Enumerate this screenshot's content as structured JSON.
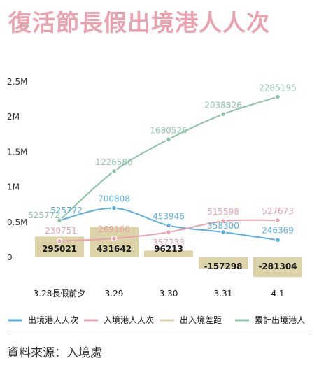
{
  "title": "復活節長假出境港人人次",
  "source": "資料來源：入境處",
  "chart_data": {
    "type": "bar",
    "categories": [
      "3.28長假前夕",
      "3.29",
      "3.30",
      "3.31",
      "4.1"
    ],
    "y_ticks": [
      {
        "value": 2500000,
        "label": "2.5M"
      },
      {
        "value": 2000000,
        "label": "2M"
      },
      {
        "value": 1500000,
        "label": "1.5M"
      },
      {
        "value": 1000000,
        "label": "1M"
      },
      {
        "value": 500000,
        "label": "0.5M"
      },
      {
        "value": 0,
        "label": "0"
      }
    ],
    "ylim": [
      -300000,
      2500000
    ],
    "grid": false,
    "legend_position": "bottom",
    "series": [
      {
        "name": "出境港人人次",
        "type": "line",
        "color": "#5aaee0",
        "values": [
          525772,
          700808,
          453946,
          358300,
          246369
        ],
        "labels": [
          "525772",
          "700808",
          "453946",
          "358300",
          "246369"
        ]
      },
      {
        "name": "入境港人人次",
        "type": "line",
        "color": "#e9a2ae",
        "values": [
          230751,
          269166,
          357733,
          515598,
          527673
        ],
        "labels": [
          "230751",
          "269166",
          "357733",
          "515598",
          "527673"
        ]
      },
      {
        "name": "出入境差距",
        "type": "bar",
        "color": "#dcd3a8",
        "values": [
          295021,
          431642,
          96213,
          -157298,
          -281304
        ],
        "labels": [
          "295021",
          "431642",
          "96213",
          "-157298",
          "-281304"
        ]
      },
      {
        "name": "累計出境港人",
        "type": "line",
        "color": "#8cc4a8",
        "values": [
          525772,
          1226580,
          1680526,
          2038826,
          2285195
        ],
        "labels": [
          "525772",
          "1226580",
          "1680526",
          "2038826",
          "2285195"
        ]
      }
    ]
  }
}
